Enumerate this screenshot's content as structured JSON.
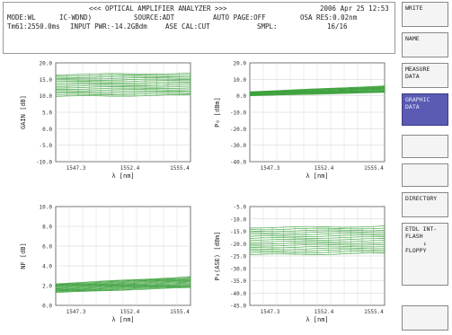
{
  "header": {
    "title": "<<< OPTICAL AMPLIFIER ANALYZER >>>",
    "datetime": "2006 Apr 25 12:53",
    "row1": [
      "MODE:WL",
      "IC-WDND)",
      "SOURCE:ADT",
      "AUTO PAGE:OFF",
      "OSA RES:0.02nm"
    ],
    "row2": [
      "Tm61:2550.0ms",
      "INPUT PWR:-14.2GBdm",
      "ASE CAL:CUT",
      "SMPL:",
      "16/16"
    ]
  },
  "sidebar": {
    "buttons": [
      {
        "label": "WRITE",
        "label2": "",
        "active": false
      },
      {
        "label": "NAME",
        "label2": "",
        "active": false
      },
      {
        "label": "MEASURE",
        "label2": "DATA",
        "active": false
      },
      {
        "label": "GRAPHIC",
        "label2": "DATA",
        "active": true
      },
      {
        "label": "",
        "label2": "",
        "active": false
      },
      {
        "label": "",
        "label2": "",
        "active": false
      },
      {
        "label": "DIRECTORY",
        "label2": "",
        "active": false
      },
      {
        "label": "ETDL INT-",
        "label2": "FLASH",
        "active": false
      },
      {
        "label": "",
        "label2": "",
        "active": false
      }
    ],
    "transfer_arrow": "↓",
    "transfer_target": "FLOPPY"
  },
  "chart_data": [
    {
      "type": "line",
      "ylabel": "GAIN [dB]",
      "xlabel": "λ [nm]",
      "yticks": [
        "20.0",
        "15.0",
        "10.0",
        "5.0",
        "0.0",
        "-5.0",
        "-10.0"
      ],
      "xticks": [
        "1547.3",
        "1552.4",
        "1555.4"
      ],
      "ylim": [
        -10,
        20
      ],
      "series_count": 16,
      "band_top": [
        16.5,
        16.8
      ],
      "band_bottom": [
        9.8,
        10.2
      ],
      "color": "#3aa03a"
    },
    {
      "type": "line",
      "ylabel": "P₀ [dBm]",
      "xlabel": "λ [nm]",
      "yticks": [
        "20.0",
        "10.0",
        "0.0",
        "-10.0",
        "-20.0",
        "-30.0",
        "-40.0"
      ],
      "xticks": [
        "1547.3",
        "1552.4",
        "1555.4"
      ],
      "ylim": [
        -40,
        20
      ],
      "series_count": 16,
      "band_top": [
        2.5,
        6.0
      ],
      "band_bottom": [
        0.0,
        2.0
      ],
      "color": "#3aa03a"
    },
    {
      "type": "line",
      "ylabel": "NF [dB]",
      "xlabel": "λ [nm]",
      "yticks": [
        "10.0",
        "8.0",
        "6.0",
        "4.0",
        "2.0",
        "0.0"
      ],
      "xticks": [
        "1547.3",
        "1552.4",
        "1555.4"
      ],
      "ylim": [
        0,
        10
      ],
      "series_count": 16,
      "band_top": [
        2.2,
        2.9
      ],
      "band_bottom": [
        1.3,
        1.8
      ],
      "color": "#3aa03a"
    },
    {
      "type": "line",
      "ylabel": "P₀(ASE) [dBm]",
      "xlabel": "λ [nm]",
      "yticks": [
        "-5.0",
        "-10.0",
        "-15.0",
        "-20.0",
        "-25.0",
        "-30.0",
        "-35.0",
        "-40.0",
        "-45.0"
      ],
      "xticks": [
        "1547.3",
        "1552.4",
        "1555.4"
      ],
      "ylim": [
        -45,
        -5
      ],
      "series_count": 16,
      "band_top": [
        -13.5,
        -13.0
      ],
      "band_bottom": [
        -24.5,
        -24.0
      ],
      "color": "#3aa03a"
    }
  ]
}
